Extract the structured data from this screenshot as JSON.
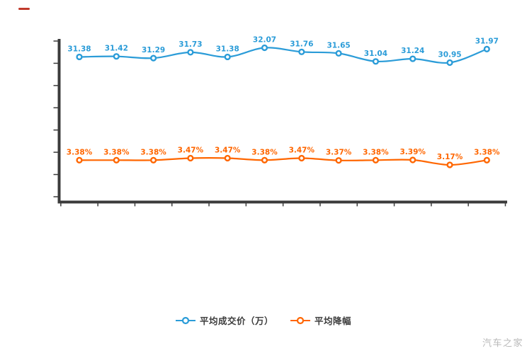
{
  "watermark": "汽车之家",
  "decorations": {
    "top_left_mark_color": "#c0392b"
  },
  "axis": {
    "color": "#3b3b3b",
    "y_tick_count": 8,
    "x_tick_count": 13
  },
  "legend": {
    "items": [
      {
        "label": "平均成交价（万）",
        "color": "#2b9cd8"
      },
      {
        "label": "平均降幅",
        "color": "#ff6600"
      }
    ]
  },
  "chart_data": {
    "type": "line",
    "title": "",
    "xlabel": "",
    "ylabel": "",
    "grid": false,
    "legend_position": "bottom",
    "x_axis_tick_labels": [],
    "y_axis_tick_labels": [],
    "x_points": 12,
    "series": [
      {
        "name": "平均成交价（万）",
        "color": "#2b9cd8",
        "values": [
          31.38,
          31.42,
          31.29,
          31.73,
          31.38,
          32.07,
          31.76,
          31.65,
          31.04,
          31.24,
          30.95,
          31.97
        ],
        "labels": [
          "31.38",
          "31.42",
          "31.29",
          "31.73",
          "31.38",
          "32.07",
          "31.76",
          "31.65",
          "31.04",
          "31.24",
          "30.95",
          "31.97"
        ]
      },
      {
        "name": "平均降幅",
        "color": "#ff6600",
        "values": [
          3.38,
          3.38,
          3.38,
          3.47,
          3.47,
          3.38,
          3.47,
          3.37,
          3.38,
          3.39,
          3.17,
          3.38
        ],
        "labels": [
          "3.38%",
          "3.38%",
          "3.38%",
          "3.47%",
          "3.47%",
          "3.38%",
          "3.47%",
          "3.37%",
          "3.38%",
          "3.39%",
          "3.17%",
          "3.38%"
        ]
      }
    ]
  }
}
